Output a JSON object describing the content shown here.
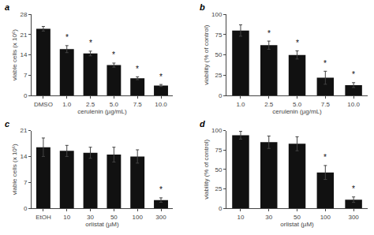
{
  "chart_data": [
    {
      "type": "bar",
      "title": "a",
      "categories": [
        "DMSO",
        "1.0",
        "2.5",
        "5.0",
        "7.5",
        "10.0"
      ],
      "values": [
        23.0,
        16.0,
        14.5,
        10.5,
        6.0,
        3.5
      ],
      "errors": [
        0.8,
        1.2,
        0.8,
        0.7,
        0.5,
        0.35
      ],
      "annotations": [
        {
          "category": "1.0",
          "text": "*"
        },
        {
          "category": "2.5",
          "text": "*"
        },
        {
          "category": "5.0",
          "text": "*"
        },
        {
          "category": "7.5",
          "text": "*"
        },
        {
          "category": "10.0",
          "text": "*"
        }
      ],
      "ylabel": "viable cells (x 10⁶)",
      "xlabel": "cerulenin (µg/mL)",
      "ylim": [
        0,
        28
      ],
      "yticks": [
        0,
        7,
        14,
        21,
        28
      ],
      "color": "#111111",
      "grid": false
    },
    {
      "type": "bar",
      "title": "b",
      "categories": [
        "1.0",
        "2.5",
        "5.0",
        "7.5",
        "10.0"
      ],
      "values": [
        80.0,
        62.0,
        50.0,
        22.0,
        13.0
      ],
      "errors": [
        7.0,
        5.0,
        5.0,
        8.0,
        3.0
      ],
      "annotations": [
        {
          "category": "2.5",
          "text": "*"
        },
        {
          "category": "5.0",
          "text": "*"
        },
        {
          "category": "7.5",
          "text": "*"
        },
        {
          "category": "10.0",
          "text": "*"
        }
      ],
      "ylabel": "viability (% of control)",
      "xlabel": "cerulenin (µg/mL)",
      "ylim": [
        0,
        100
      ],
      "yticks": [
        0,
        25,
        50,
        75,
        100
      ],
      "color": "#111111",
      "grid": false
    },
    {
      "type": "bar",
      "title": "c",
      "categories": [
        "EtOH",
        "10",
        "30",
        "50",
        "100",
        "300"
      ],
      "values": [
        16.5,
        15.5,
        15.0,
        14.5,
        14.0,
        2.2
      ],
      "errors": [
        2.5,
        1.5,
        1.5,
        2.0,
        1.8,
        0.6
      ],
      "annotations": [
        {
          "category": "300",
          "text": "*"
        }
      ],
      "ylabel": "viable cells (x 10⁶)",
      "xlabel": "orlistat (µM)",
      "ylim": [
        0,
        21
      ],
      "yticks": [
        0,
        7,
        14,
        21
      ],
      "color": "#111111",
      "grid": false
    },
    {
      "type": "bar",
      "title": "d",
      "categories": [
        "10",
        "30",
        "50",
        "100",
        "300"
      ],
      "values": [
        94.0,
        85.0,
        83.0,
        46.0,
        11.0
      ],
      "errors": [
        5.0,
        8.0,
        9.0,
        9.0,
        3.5
      ],
      "annotations": [
        {
          "category": "100",
          "text": "*"
        },
        {
          "category": "300",
          "text": "*"
        }
      ],
      "ylabel": "viability (% of control)",
      "xlabel": "orlistat (µM)",
      "ylim": [
        0,
        100
      ],
      "yticks": [
        0,
        25,
        50,
        75,
        100
      ],
      "color": "#111111",
      "grid": false
    }
  ]
}
